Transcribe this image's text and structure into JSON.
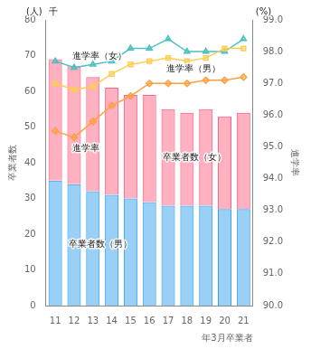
{
  "chart_data": {
    "type": "bar",
    "categories": [
      "11",
      "12",
      "13",
      "14",
      "15",
      "16",
      "17",
      "18",
      "19",
      "20",
      "21"
    ],
    "xlabel": "年3月卒業者",
    "ylabel": "卒業者数",
    "y2label": "進学率",
    "annotations": [
      "(人)",
      "千",
      "(%)"
    ],
    "stacked": true,
    "grid": false,
    "ylim": [
      0,
      80
    ],
    "yticks": [
      0,
      10,
      20,
      30,
      40,
      50,
      60,
      70,
      80
    ],
    "y2lim": [
      90.0,
      99.0
    ],
    "y2ticks": [
      {
        "value": 90.0,
        "label": "90.0"
      },
      {
        "value": 91.0,
        "label": "91.0"
      },
      {
        "value": 92.0,
        "label": "92.0"
      },
      {
        "value": 93.0,
        "label": "93.0"
      },
      {
        "value": 94.0,
        "label": "94.0"
      },
      {
        "value": 95.0,
        "label": "95.0"
      },
      {
        "value": 96.0,
        "label": "96.0"
      },
      {
        "value": 97.0,
        "label": "97.0"
      },
      {
        "value": 98.0,
        "label": "98.0"
      },
      {
        "value": 99.0,
        "label": "99.0"
      }
    ],
    "series": [
      {
        "name": "卒業者数（男）",
        "type": "bar",
        "values": [
          35,
          34,
          32,
          31,
          30,
          29,
          28,
          28,
          28,
          27,
          27
        ]
      },
      {
        "name": "卒業者数（女）",
        "type": "bar",
        "values": [
          34,
          33,
          32,
          30,
          29,
          30,
          27,
          26,
          27,
          26,
          27
        ]
      },
      {
        "name": "進学率",
        "type": "line",
        "axis": "y2",
        "marker": "diamond",
        "values": [
          95.5,
          95.3,
          95.8,
          96.3,
          96.6,
          97.0,
          97.0,
          97.0,
          97.1,
          97.1,
          97.2
        ]
      },
      {
        "name": "進学率（男）",
        "type": "line",
        "axis": "y2",
        "marker": "square",
        "values": [
          97.0,
          96.8,
          96.9,
          97.3,
          97.6,
          97.7,
          97.8,
          97.7,
          97.8,
          98.1,
          98.1
        ]
      },
      {
        "name": "進学率（女）",
        "type": "line",
        "axis": "y2",
        "marker": "triangle",
        "values": [
          97.7,
          97.5,
          97.6,
          97.7,
          98.1,
          98.1,
          98.4,
          98.0,
          98.0,
          98.0,
          98.4
        ]
      }
    ]
  }
}
